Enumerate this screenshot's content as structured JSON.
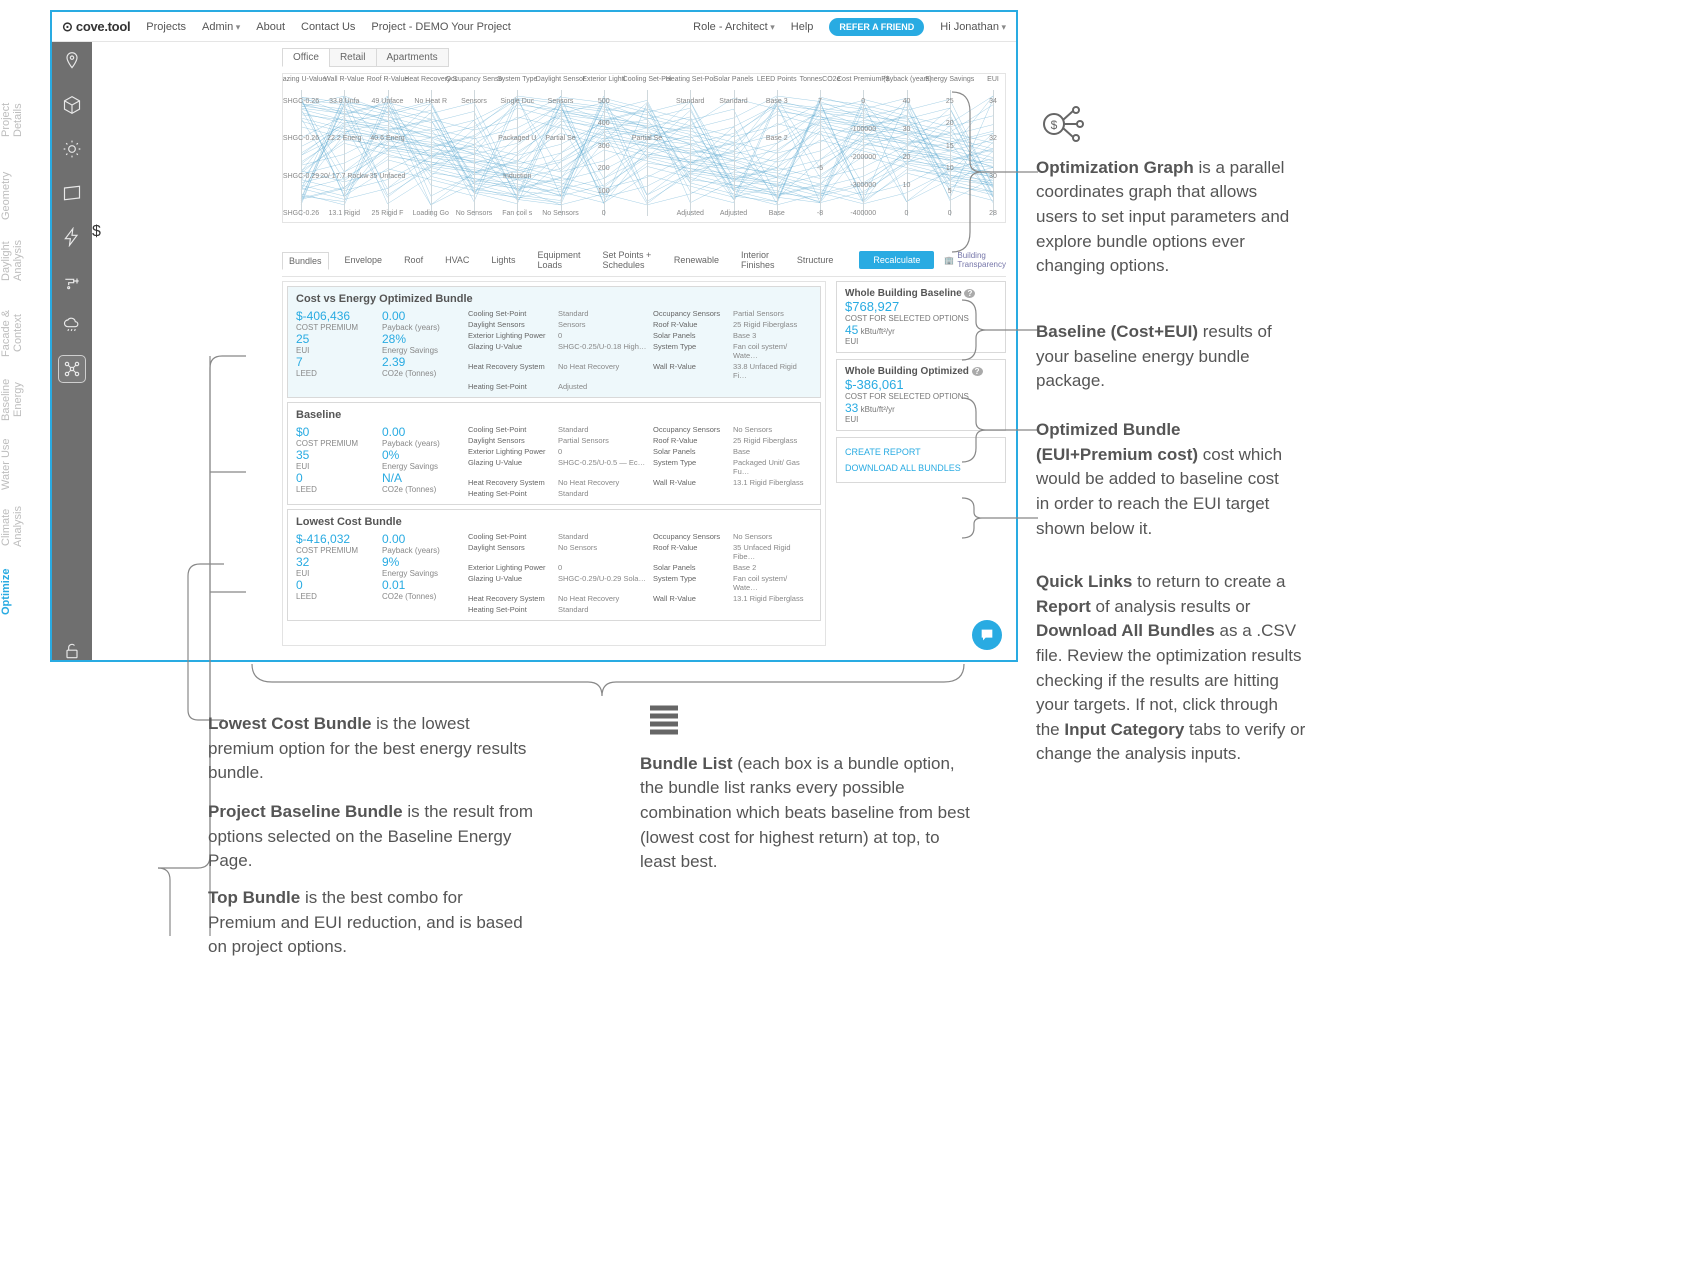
{
  "logo": "cove.tool",
  "nav": {
    "projects": "Projects",
    "admin": "Admin",
    "about": "About",
    "contact": "Contact Us",
    "project": "Project - DEMO Your Project",
    "role": "Role - Architect",
    "help": "Help",
    "refer": "REFER A FRIEND",
    "hi": "Hi Jonathan"
  },
  "vlabels": [
    "Project Details",
    "Geometry",
    "Daylight Analysis",
    "Facade & Context",
    "Baseline Energy",
    "Water Use",
    "Climate Analysis",
    "Optimize"
  ],
  "buildingTabs": [
    "Office",
    "Retail",
    "Apartments"
  ],
  "pcAxes": [
    "Glazing U-Value",
    "Wall R-Value",
    "Roof R-Value",
    "Heat Recovery S",
    "Occupancy Senso",
    "System Type",
    "Daylight Sensor",
    "Exterior Lighti",
    "Cooling Set-Poi",
    "Heating Set-Poi",
    "Solar Panels",
    "LEED Points",
    "TonnesCO2e",
    "Cost Premium ($",
    "Payback (years)",
    "Energy Savings",
    "EUI"
  ],
  "pcTicks": [
    [
      "SHGC-0.26",
      "SHGC-0.26",
      "SHGC-0.29",
      "SHGC-0.26"
    ],
    [
      "33.8 Unfa",
      "22.2 Energ",
      "20/ 17.7 Rockw",
      "13.1 Rigid"
    ],
    [
      "49 Unface",
      "40.6 Energ",
      "35 Unfaced",
      "25 Rigid F"
    ],
    [
      "No Heat R",
      "",
      "",
      "Loading Go"
    ],
    [
      "Sensors",
      "",
      "",
      "No Sensors"
    ],
    [
      "Single Duc",
      "Packaged U",
      "Induction",
      "Fan coil s"
    ],
    [
      "Sensors",
      "Partial Se",
      "",
      "No Sensors"
    ],
    [
      "500",
      "400",
      "300",
      "200",
      "100",
      "0"
    ],
    [
      "",
      "Partial Se",
      "",
      ""
    ],
    [
      "Standard",
      "",
      "",
      "Adjusted"
    ],
    [
      "Standard",
      "",
      "",
      "Adjusted"
    ],
    [
      "Base 3",
      "Base 2",
      "",
      "Base"
    ],
    [
      "7",
      "",
      "",
      "-5",
      "",
      "-8"
    ],
    [
      "0",
      "-100000",
      "-200000",
      "-300000",
      "-400000"
    ],
    [
      "40",
      "30",
      "20",
      "10",
      "0"
    ],
    [
      "25",
      "20",
      "15",
      "10",
      "5",
      "0"
    ],
    [
      "34",
      "32",
      "30",
      "28"
    ]
  ],
  "subtabs": [
    "Bundles",
    "Envelope",
    "Roof",
    "HVAC",
    "Lights",
    "Equipment Loads",
    "Set Points + Schedules",
    "Renewable",
    "Interior Finishes",
    "Structure"
  ],
  "recalc": "Recalculate",
  "bt": "Building Transparency",
  "bundles": [
    {
      "hl": true,
      "title": "Cost vs Energy Optimized Bundle",
      "metrics": [
        [
          "$-406,436",
          "COST PREMIUM"
        ],
        [
          "25",
          "EUI"
        ],
        [
          "7",
          "LEED"
        ],
        [
          "0.00",
          "Payback (years)"
        ],
        [
          "28%",
          "Energy Savings"
        ],
        [
          "2.39",
          "CO2e (Tonnes)"
        ]
      ],
      "params": [
        [
          "Cooling Set-Point",
          "Standard"
        ],
        [
          "Daylight Sensors",
          "Sensors"
        ],
        [
          "Exterior Lighting Power",
          "0"
        ],
        [
          "Glazing U-Value",
          "SHGC-0.25/U-0.18 High…"
        ],
        [
          "Heat Recovery System",
          "No Heat Recovery"
        ],
        [
          "Heating Set-Point",
          "Adjusted"
        ],
        [
          "Occupancy Sensors",
          "Partial Sensors"
        ],
        [
          "Roof R-Value",
          "25 Rigid Fiberglass"
        ],
        [
          "Solar Panels",
          "Base 3"
        ],
        [
          "System Type",
          "Fan coil system/ Wate…"
        ],
        [
          "Wall R-Value",
          "33.8 Unfaced Rigid Fi…"
        ]
      ]
    },
    {
      "title": "Baseline",
      "metrics": [
        [
          "$0",
          "COST PREMIUM"
        ],
        [
          "35",
          "EUI"
        ],
        [
          "0",
          "LEED"
        ],
        [
          "0.00",
          "Payback (years)"
        ],
        [
          "0%",
          "Energy Savings"
        ],
        [
          "N/A",
          "CO2e (Tonnes)"
        ]
      ],
      "params": [
        [
          "Cooling Set-Point",
          "Standard"
        ],
        [
          "Daylight Sensors",
          "Partial Sensors"
        ],
        [
          "Exterior Lighting Power",
          "0"
        ],
        [
          "Glazing U-Value",
          "SHGC-0.25/U-0.5 — Ec…"
        ],
        [
          "Heat Recovery System",
          "No Heat Recovery"
        ],
        [
          "Heating Set-Point",
          "Standard"
        ],
        [
          "Occupancy Sensors",
          "No Sensors"
        ],
        [
          "Roof R-Value",
          "25 Rigid Fiberglass"
        ],
        [
          "Solar Panels",
          "Base"
        ],
        [
          "System Type",
          "Packaged Unit/ Gas Fu…"
        ],
        [
          "Wall R-Value",
          "13.1 Rigid Fiberglass"
        ]
      ]
    },
    {
      "title": "Lowest Cost Bundle",
      "metrics": [
        [
          "$-416,032",
          "COST PREMIUM"
        ],
        [
          "32",
          "EUI"
        ],
        [
          "0",
          "LEED"
        ],
        [
          "0.00",
          "Payback (years)"
        ],
        [
          "9%",
          "Energy Savings"
        ],
        [
          "0.01",
          "CO2e (Tonnes)"
        ]
      ],
      "params": [
        [
          "Cooling Set-Point",
          "Standard"
        ],
        [
          "Daylight Sensors",
          "No Sensors"
        ],
        [
          "Exterior Lighting Power",
          "0"
        ],
        [
          "Glazing U-Value",
          "SHGC-0.29/U-0.29 Sola…"
        ],
        [
          "Heat Recovery System",
          "No Heat Recovery"
        ],
        [
          "Heating Set-Point",
          "Standard"
        ],
        [
          "Occupancy Sensors",
          "No Sensors"
        ],
        [
          "Roof R-Value",
          "35 Unfaced Rigid Fibe…"
        ],
        [
          "Solar Panels",
          "Base 2"
        ],
        [
          "System Type",
          "Fan coil system/ Wate…"
        ],
        [
          "Wall R-Value",
          "13.1 Rigid Fiberglass"
        ]
      ]
    }
  ],
  "sideCards": [
    {
      "title": "Whole Building Baseline",
      "q": "?",
      "big": "$768,927",
      "l1": "COST FOR SELECTED OPTIONS",
      "v": "45",
      "unit": " kBtu/ft²/yr",
      "l2": "EUI"
    },
    {
      "title": "Whole Building Optimized",
      "q": "?",
      "big": "$-386,061",
      "l1": "COST FOR SELECTED OPTIONS",
      "v": "33",
      "unit": " kBtu/ft²/yr",
      "l2": "EUI"
    }
  ],
  "links": {
    "report": "CREATE REPORT",
    "dl": "DOWNLOAD ALL BUNDLES"
  },
  "ann": {
    "og": "Optimization Graph is a parallel coordinates graph that allows users to set input parameters and explore bundle options ever changing options.",
    "bl": "Baseline (Cost+EUI) results of your baseline energy bundle package.",
    "ob": "Optimized Bundle (EUI+Premium cost) cost which would be added to baseline cost in order to reach the EUI target shown below it.",
    "ql": "Quick Links to return to create a Report of analysis results or Download All Bundles as a .CSV file. Review the optimization results checking if the results are hitting your targets. If not, click through the Input Category tabs to verify or change the analysis inputs.",
    "lc": "Lowest Cost Bundle is the lowest premium option for the best energy results bundle.",
    "pb": "Project Baseline Bundle is the result from options selected on the Baseline Energy Page.",
    "tb": "Top Bundle is the best combo for Premium and EUI reduction, and is based on project options.",
    "bli": "Bundle List (each box is a bundle option, the bundle list ranks every possible combination which beats baseline from best (lowest cost for highest return) at top, to least best."
  }
}
